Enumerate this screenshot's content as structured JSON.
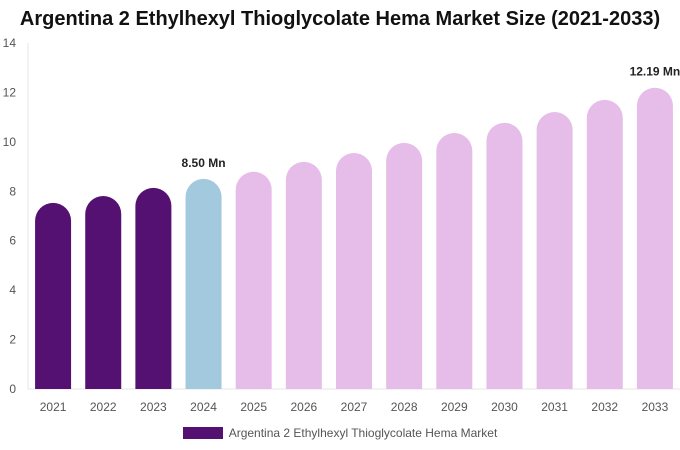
{
  "chart_data": {
    "type": "bar",
    "title": "Argentina 2 Ethylhexyl Thioglycolate Hema Market Size (2021-2033)",
    "categories": [
      "2021",
      "2022",
      "2023",
      "2024",
      "2025",
      "2026",
      "2027",
      "2028",
      "2029",
      "2030",
      "2031",
      "2032",
      "2033"
    ],
    "series": [
      {
        "name": "Argentina 2 Ethylhexyl Thioglycolate Hema Market",
        "values": [
          7.53,
          7.81,
          8.14,
          8.5,
          8.79,
          9.19,
          9.55,
          9.96,
          10.36,
          10.77,
          11.21,
          11.7,
          12.19
        ]
      }
    ],
    "data_labels": [
      {
        "category": "2024",
        "text": "8.50 Mn"
      },
      {
        "category": "2033",
        "text": "12.19 Mn"
      }
    ],
    "ylim": [
      0,
      14
    ],
    "yticks": [
      0,
      2,
      4,
      6,
      8,
      10,
      12,
      14
    ],
    "xlabel": "",
    "ylabel": "",
    "grid": false,
    "legend_position": "bottom",
    "colors": {
      "historical": "#541171",
      "base_year": "#a3c9de",
      "forecast": "#e6bde9"
    }
  }
}
